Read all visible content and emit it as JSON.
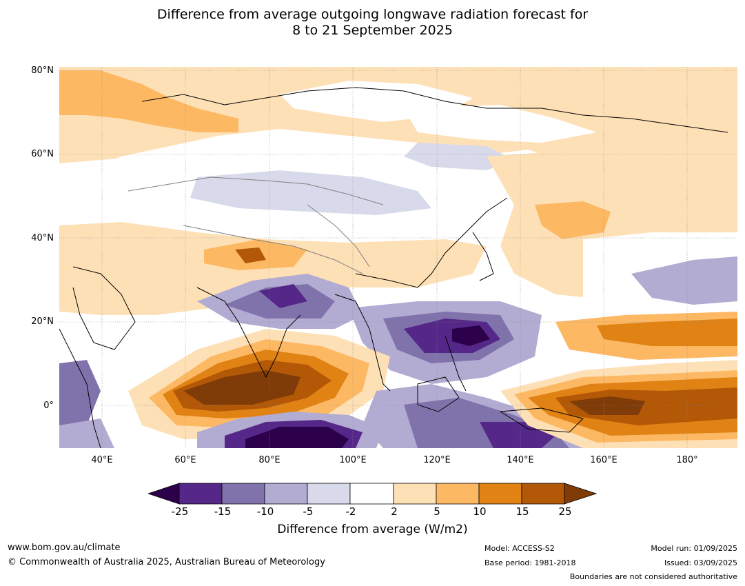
{
  "title": {
    "line1": "Difference from average outgoing longwave radiation forecast for",
    "line2": "8 to 21 September 2025"
  },
  "map": {
    "lat_labels": [
      "80°N",
      "60°N",
      "40°N",
      "20°N",
      "0°"
    ],
    "lon_labels": [
      "40°E",
      "60°E",
      "80°E",
      "100°E",
      "120°E",
      "140°E",
      "160°E",
      "180°"
    ]
  },
  "colorbar": {
    "ticks": [
      "-25",
      "-15",
      "-10",
      "-5",
      "-2",
      "2",
      "5",
      "10",
      "15",
      "25"
    ],
    "label": "Difference from average (W/m2)",
    "colors": {
      "lt_-25": "#2d004b",
      "-25_-15": "#542788",
      "-15_-10": "#8073ac",
      "-10_-5": "#b2abd2",
      "-5_-2": "#d8daeb",
      "-2_2": "#ffffff",
      "2_5": "#fee0b6",
      "5_10": "#fdb863",
      "10_15": "#e08214",
      "15_25": "#b35806",
      "gt_25": "#7f3b08"
    }
  },
  "footer": {
    "website": "www.bom.gov.au/climate",
    "copyright": "© Commonwealth of Australia 2025, Australian Bureau of Meteorology",
    "model": "Model: ACCESS-S2",
    "base_period": "Base period: 1981-2018",
    "model_run": "Model run: 01/09/2025",
    "issued": "Issued: 03/09/2025",
    "disclaimer": "Boundaries are not considered authoritative"
  }
}
